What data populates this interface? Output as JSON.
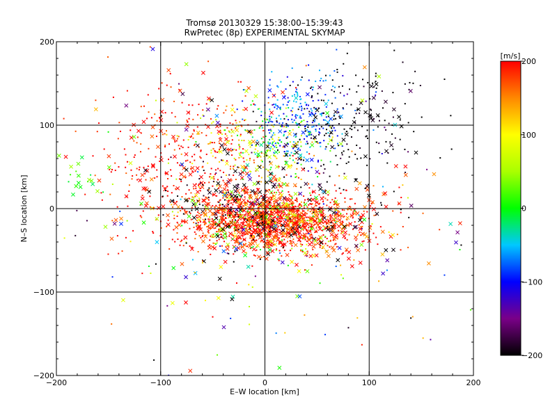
{
  "chart_data": {
    "type": "scatter",
    "title": "Tromsø 20130329 15:38:00–15:39:43",
    "subtitle": "RwPretec (8p) EXPERIMENTAL SKYMAP",
    "xlabel": "E–W location [km]",
    "ylabel": "N–S location [km]",
    "xlim": [
      -200,
      200
    ],
    "ylim": [
      -200,
      200
    ],
    "xticks": [
      -200,
      -100,
      0,
      100,
      200
    ],
    "yticks": [
      -200,
      -100,
      0,
      100,
      200
    ],
    "xtick_labels": [
      "−200",
      "−100",
      "0",
      "100",
      "200"
    ],
    "ytick_labels": [
      "−200",
      "−100",
      "0",
      "100",
      "200"
    ],
    "grid": true,
    "gridlines": [
      -100,
      0,
      100
    ],
    "colorbar": {
      "label": "[m/s]",
      "range": [
        -200,
        200
      ],
      "ticks": [
        200,
        100,
        0,
        -100,
        -200
      ],
      "tick_labels": [
        "200",
        "100",
        "0",
        "−100",
        "−200"
      ],
      "stops": [
        {
          "v": -200,
          "color": "#000000"
        },
        {
          "v": -150,
          "color": "#7a0088"
        },
        {
          "v": -100,
          "color": "#0000ff"
        },
        {
          "v": -50,
          "color": "#00c8ff"
        },
        {
          "v": 0,
          "color": "#00ff00"
        },
        {
          "v": 50,
          "color": "#aaff00"
        },
        {
          "v": 100,
          "color": "#ffff00"
        },
        {
          "v": 150,
          "color": "#ff8800"
        },
        {
          "v": 200,
          "color": "#ff0000"
        }
      ]
    },
    "markers": {
      "small": "dot",
      "large": "x"
    },
    "clusters": [
      {
        "cx": 10,
        "cy": -15,
        "sx": 45,
        "sy": 18,
        "n": 1400,
        "vel": [
          150,
          230
        ],
        "xfrac": 0.35
      },
      {
        "cx": 10,
        "cy": -15,
        "sx": 40,
        "sy": 18,
        "n": 180,
        "vel": [
          -10,
          140
        ],
        "xfrac": 0.3
      },
      {
        "cx": 20,
        "cy": -10,
        "sx": 45,
        "sy": 22,
        "n": 60,
        "vel": [
          -220,
          -170
        ],
        "xfrac": 0.6
      },
      {
        "cx": -70,
        "cy": 55,
        "sx": 45,
        "sy": 45,
        "n": 450,
        "vel": [
          160,
          230
        ],
        "xfrac": 0.2
      },
      {
        "cx": -15,
        "cy": 80,
        "sx": 30,
        "sy": 25,
        "n": 160,
        "vel": [
          60,
          150
        ],
        "xfrac": 0.1
      },
      {
        "cx": 10,
        "cy": 80,
        "sx": 22,
        "sy": 22,
        "n": 90,
        "vel": [
          -30,
          40
        ],
        "xfrac": 0.05
      },
      {
        "cx": 35,
        "cy": 105,
        "sx": 22,
        "sy": 25,
        "n": 260,
        "vel": [
          -120,
          -40
        ],
        "xfrac": 0.05
      },
      {
        "cx": 80,
        "cy": 100,
        "sx": 35,
        "sy": 40,
        "n": 220,
        "vel": [
          -230,
          -180
        ],
        "xfrac": 0.15
      },
      {
        "cx": -30,
        "cy": 10,
        "sx": 40,
        "sy": 30,
        "n": 120,
        "vel": [
          -230,
          -170
        ],
        "xfrac": 0.4
      },
      {
        "cx": -170,
        "cy": 35,
        "sx": 12,
        "sy": 15,
        "n": 18,
        "vel": [
          -20,
          60
        ],
        "xfrac": 0.6
      },
      {
        "cx": 0,
        "cy": 0,
        "sx": 105,
        "sy": 85,
        "n": 320,
        "vel": [
          -220,
          220
        ],
        "xfrac": 0.55
      }
    ]
  }
}
